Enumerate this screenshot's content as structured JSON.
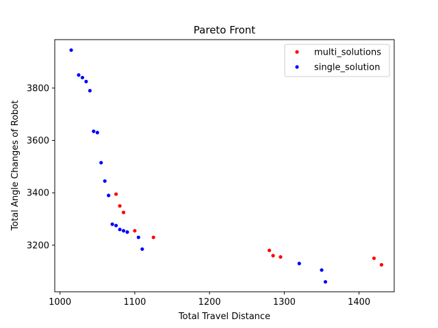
{
  "chart_data": {
    "type": "scatter",
    "title": "Pareto Front",
    "xlabel": "Total Travel Distance",
    "ylabel": "Total Angle Changes of Robot",
    "xlim": [
      993,
      1447
    ],
    "ylim": [
      3022,
      3985
    ],
    "xticks": [
      1000,
      1100,
      1200,
      1300,
      1400
    ],
    "yticks": [
      3200,
      3400,
      3600,
      3800
    ],
    "grid": false,
    "legend_position": "top-right",
    "series": [
      {
        "name": "multi_solutions",
        "color": "#ff0000",
        "points": [
          [
            1075,
            3395
          ],
          [
            1080,
            3350
          ],
          [
            1085,
            3325
          ],
          [
            1100,
            3255
          ],
          [
            1125,
            3230
          ],
          [
            1280,
            3180
          ],
          [
            1285,
            3160
          ],
          [
            1295,
            3155
          ],
          [
            1420,
            3150
          ],
          [
            1430,
            3125
          ]
        ]
      },
      {
        "name": "single_solution",
        "color": "#0000ff",
        "points": [
          [
            1015,
            3945
          ],
          [
            1025,
            3850
          ],
          [
            1030,
            3840
          ],
          [
            1035,
            3825
          ],
          [
            1040,
            3790
          ],
          [
            1045,
            3635
          ],
          [
            1050,
            3630
          ],
          [
            1055,
            3515
          ],
          [
            1060,
            3445
          ],
          [
            1065,
            3390
          ],
          [
            1070,
            3280
          ],
          [
            1075,
            3275
          ],
          [
            1080,
            3260
          ],
          [
            1085,
            3255
          ],
          [
            1090,
            3250
          ],
          [
            1105,
            3230
          ],
          [
            1110,
            3185
          ],
          [
            1320,
            3130
          ],
          [
            1350,
            3105
          ],
          [
            1355,
            3060
          ]
        ]
      }
    ]
  }
}
